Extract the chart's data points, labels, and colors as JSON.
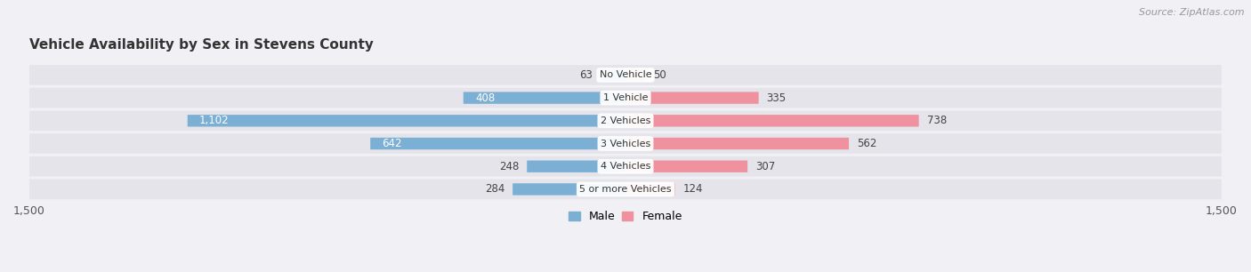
{
  "title": "Vehicle Availability by Sex in Stevens County",
  "source": "Source: ZipAtlas.com",
  "categories": [
    "No Vehicle",
    "1 Vehicle",
    "2 Vehicles",
    "3 Vehicles",
    "4 Vehicles",
    "5 or more Vehicles"
  ],
  "male_values": [
    63,
    408,
    1102,
    642,
    248,
    284
  ],
  "female_values": [
    50,
    335,
    738,
    562,
    307,
    124
  ],
  "male_color": "#7bafd4",
  "female_color": "#f0919f",
  "male_label": "Male",
  "female_label": "Female",
  "xlim": 1500,
  "bar_height": 0.52,
  "row_bg_color": "#e4e4ea",
  "bg_color": "#f0f0f5",
  "title_fontsize": 11,
  "source_fontsize": 8,
  "label_fontsize": 8.5,
  "tick_fontsize": 9,
  "legend_fontsize": 9,
  "white_label_threshold": 400
}
